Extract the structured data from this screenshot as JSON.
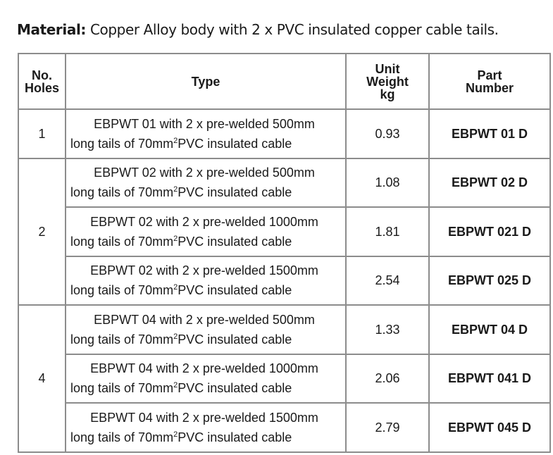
{
  "material": {
    "label": "Material:",
    "text": "Copper Alloy body with 2 x PVC insulated copper cable tails."
  },
  "table": {
    "headers": [
      [
        "No.",
        "Holes"
      ],
      [
        "Type"
      ],
      [
        "Unit",
        "Weight",
        "kg"
      ],
      [
        "Part",
        "Number"
      ]
    ],
    "groups": [
      {
        "holes": "1",
        "rows": [
          {
            "type": [
              "EBPWT 01 with 2 x pre-welded 500mm",
              "long tails of 70mm",
              "2",
              "PVC insulated cable"
            ],
            "weight": "0.93",
            "part": "EBPWT 01 D"
          }
        ]
      },
      {
        "holes": "2",
        "rows": [
          {
            "type": [
              "EBPWT 02 with 2 x pre-welded 500mm",
              "long tails of 70mm",
              "2",
              "PVC insulated cable"
            ],
            "weight": "1.08",
            "part": "EBPWT 02 D"
          },
          {
            "type": [
              "EBPWT 02 with 2 x pre-welded 1000mm",
              "long tails of 70mm",
              "2",
              "PVC insulated cable"
            ],
            "weight": "1.81",
            "part": "EBPWT 021 D"
          },
          {
            "type": [
              "EBPWT 02 with 2 x pre-welded 1500mm",
              "long tails of 70mm",
              "2",
              "PVC insulated cable"
            ],
            "weight": "2.54",
            "part": "EBPWT 025 D"
          }
        ]
      },
      {
        "holes": "4",
        "rows": [
          {
            "type": [
              "EBPWT 04 with 2 x pre-welded 500mm",
              "long tails of 70mm",
              "2",
              "PVC insulated cable"
            ],
            "weight": "1.33",
            "part": "EBPWT 04 D"
          },
          {
            "type": [
              "EBPWT 04 with 2 x pre-welded 1000mm",
              "long tails of 70mm",
              "2",
              "PVC insulated cable"
            ],
            "weight": "2.06",
            "part": "EBPWT 041 D"
          },
          {
            "type": [
              "EBPWT 04 with 2 x pre-welded 1500mm",
              "long tails of 70mm",
              "2",
              "PVC insulated cable"
            ],
            "weight": "2.79",
            "part": "EBPWT 045 D"
          }
        ]
      }
    ]
  }
}
